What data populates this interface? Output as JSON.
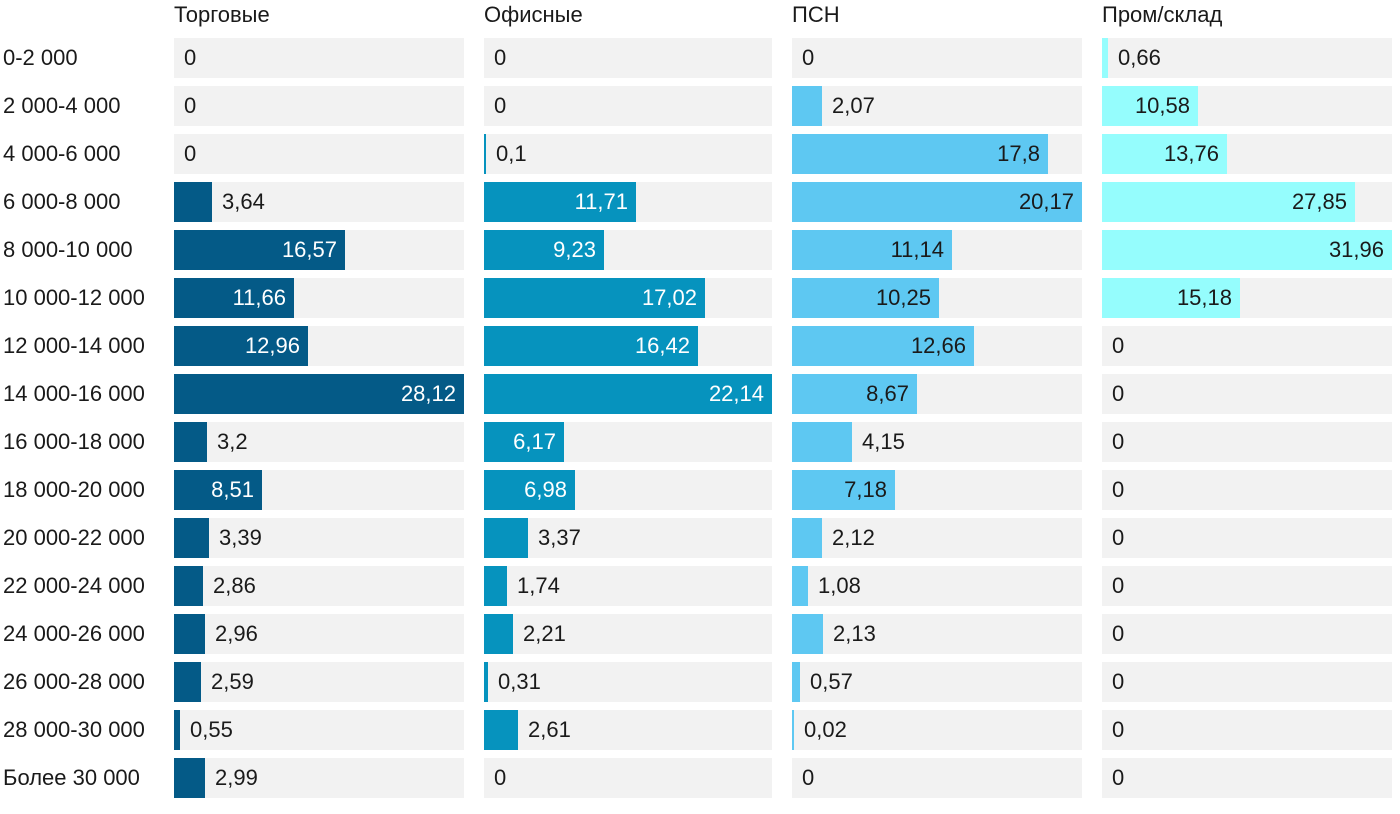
{
  "chart_data": {
    "type": "bar",
    "orientation": "horizontal",
    "layout": "small-multiples",
    "categories": [
      "0-2 000",
      "2 000-4 000",
      "4 000-6 000",
      "6 000-8 000",
      "8 000-10 000",
      "10 000-12 000",
      "12 000-14 000",
      "14 000-16 000",
      "16 000-18 000",
      "18 000-20 000",
      "20 000-22 000",
      "22 000-24 000",
      "24 000-26 000",
      "26 000-28 000",
      "28 000-30 000",
      "Более 30 000"
    ],
    "series": [
      {
        "name": "Торговые",
        "color": "#045a87",
        "inside_label_color": "#ffffff",
        "max": 28.12,
        "labels": [
          "0",
          "0",
          "0",
          "3,64",
          "16,57",
          "11,66",
          "12,96",
          "28,12",
          "3,2",
          "8,51",
          "3,39",
          "2,86",
          "2,96",
          "2,59",
          "0,55",
          "2,99"
        ],
        "values": [
          0,
          0,
          0,
          3.64,
          16.57,
          11.66,
          12.96,
          28.12,
          3.2,
          8.51,
          3.39,
          2.86,
          2.96,
          2.59,
          0.55,
          2.99
        ]
      },
      {
        "name": "Офисные",
        "color": "#0693be",
        "inside_label_color": "#ffffff",
        "max": 22.14,
        "labels": [
          "0",
          "0",
          "0,1",
          "11,71",
          "9,23",
          "17,02",
          "16,42",
          "22,14",
          "6,17",
          "6,98",
          "3,37",
          "1,74",
          "2,21",
          "0,31",
          "2,61",
          "0"
        ],
        "values": [
          0,
          0,
          0.1,
          11.71,
          9.23,
          17.02,
          16.42,
          22.14,
          6.17,
          6.98,
          3.37,
          1.74,
          2.21,
          0.31,
          2.61,
          0
        ]
      },
      {
        "name": "ПСН",
        "color": "#5ec8f2",
        "inside_label_color": "#1a1a1a",
        "max": 20.17,
        "labels": [
          "0",
          "2,07",
          "17,8",
          "20,17",
          "11,14",
          "10,25",
          "12,66",
          "8,67",
          "4,15",
          "7,18",
          "2,12",
          "1,08",
          "2,13",
          "0,57",
          "0,02",
          "0"
        ],
        "values": [
          0,
          2.07,
          17.8,
          20.17,
          11.14,
          10.25,
          12.66,
          8.67,
          4.15,
          7.18,
          2.12,
          1.08,
          2.13,
          0.57,
          0.02,
          0
        ]
      },
      {
        "name": "Пром/склад",
        "color": "#95fdfd",
        "inside_label_color": "#1a1a1a",
        "max": 31.96,
        "labels": [
          "0,66",
          "10,58",
          "13,76",
          "27,85",
          "31,96",
          "15,18",
          "0",
          "0",
          "0",
          "0",
          "0",
          "0",
          "0",
          "0",
          "0",
          "0"
        ],
        "values": [
          0.66,
          10.58,
          13.76,
          27.85,
          31.96,
          15.18,
          0,
          0,
          0,
          0,
          0,
          0,
          0,
          0,
          0,
          0
        ]
      }
    ],
    "track_color": "#f2f2f2",
    "outside_label_color": "#1a1a1a",
    "title": "",
    "xlabel": "",
    "ylabel": ""
  }
}
